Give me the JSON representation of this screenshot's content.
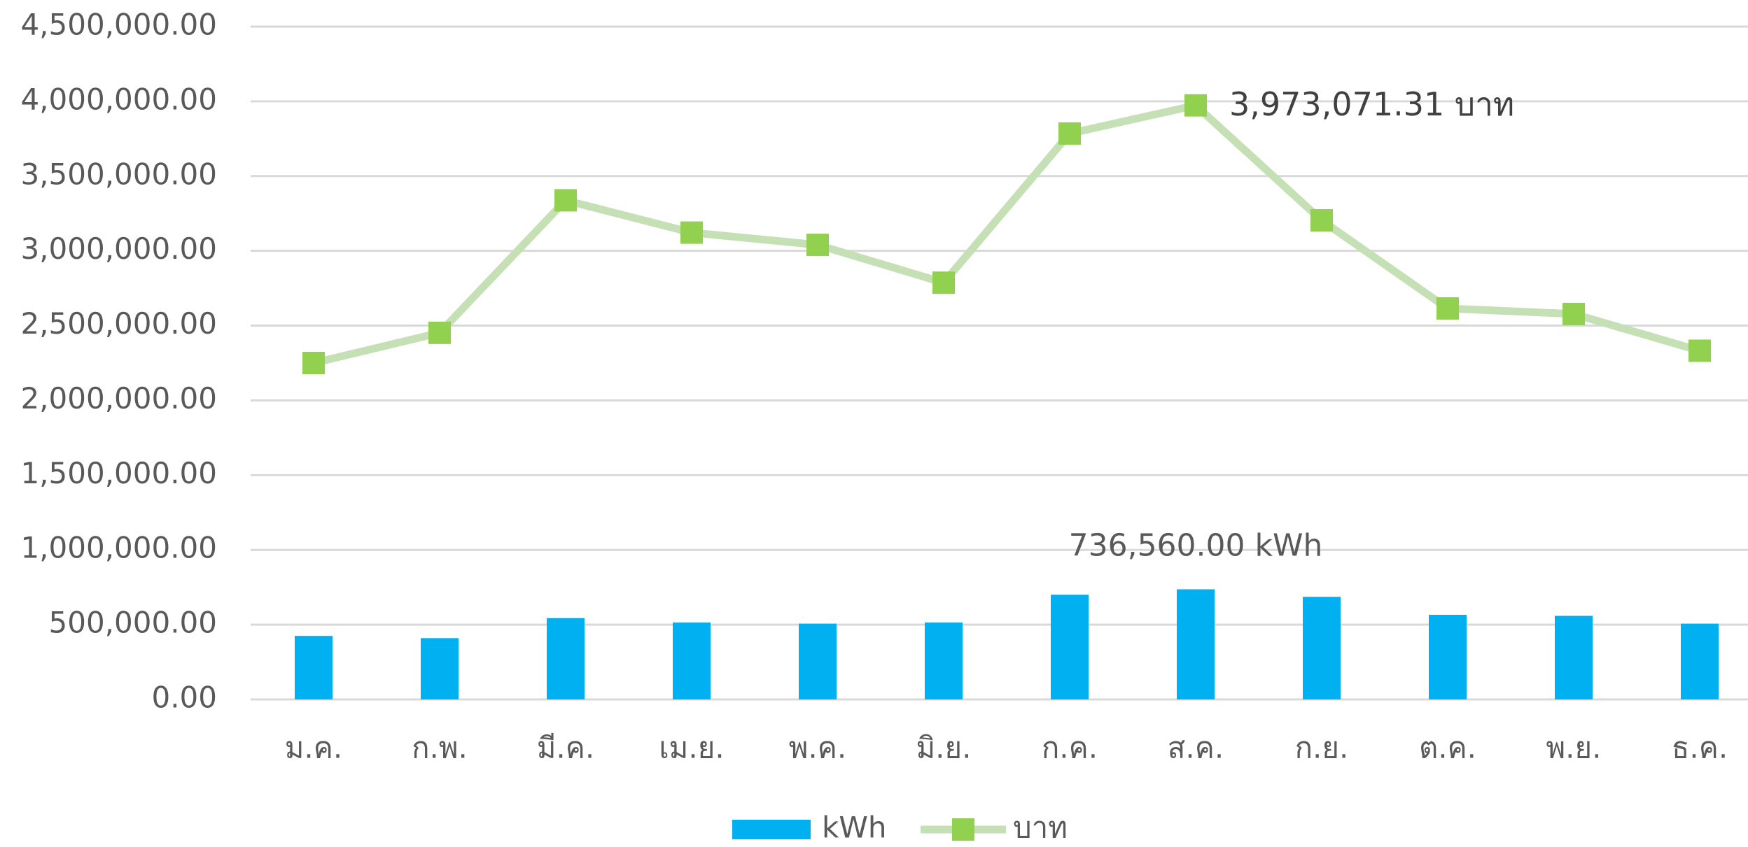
{
  "chart_data": {
    "type": "bar",
    "categories": [
      "ม.ค.",
      "ก.พ.",
      "มี.ค.",
      "เม.ย.",
      "พ.ค.",
      "มิ.ย.",
      "ก.ค.",
      "ส.ค.",
      "ก.ย.",
      "ต.ค.",
      "พ.ย.",
      "ธ.ค."
    ],
    "series": [
      {
        "name": "kWh",
        "type": "bar",
        "color": "#00b0f0",
        "values": [
          425000,
          410000,
          544000,
          514000,
          507000,
          514000,
          700000,
          736560,
          686000,
          566000,
          559000,
          507000
        ],
        "value_labels": [
          null,
          null,
          null,
          null,
          null,
          null,
          null,
          "736,560.00 kWh",
          null,
          null,
          null,
          null
        ]
      },
      {
        "name": "บาท",
        "type": "line",
        "color": "#c5e0b4",
        "marker_color": "#92d050",
        "values": [
          2250000,
          2452000,
          3338000,
          3122000,
          3040000,
          2787000,
          3785000,
          3973071.31,
          3204000,
          2615000,
          2578000,
          2332000
        ],
        "value_labels": [
          null,
          null,
          null,
          null,
          null,
          null,
          null,
          "3,973,071.31 บาท",
          null,
          null,
          null,
          null
        ]
      }
    ],
    "ylim": [
      0,
      4500000
    ],
    "yticks": [
      {
        "value": 0,
        "label": "0.00"
      },
      {
        "value": 500000,
        "label": "500,000.00"
      },
      {
        "value": 1000000,
        "label": "1,000,000.00"
      },
      {
        "value": 1500000,
        "label": "1,500,000.00"
      },
      {
        "value": 2000000,
        "label": "2,000,000.00"
      },
      {
        "value": 2500000,
        "label": "2,500,000.00"
      },
      {
        "value": 3000000,
        "label": "3,000,000.00"
      },
      {
        "value": 3500000,
        "label": "3,500,000.00"
      },
      {
        "value": 4000000,
        "label": "4,000,000.00"
      },
      {
        "value": 4500000,
        "label": "4,500,000.00"
      }
    ],
    "grid": true,
    "legend": "bottom"
  }
}
